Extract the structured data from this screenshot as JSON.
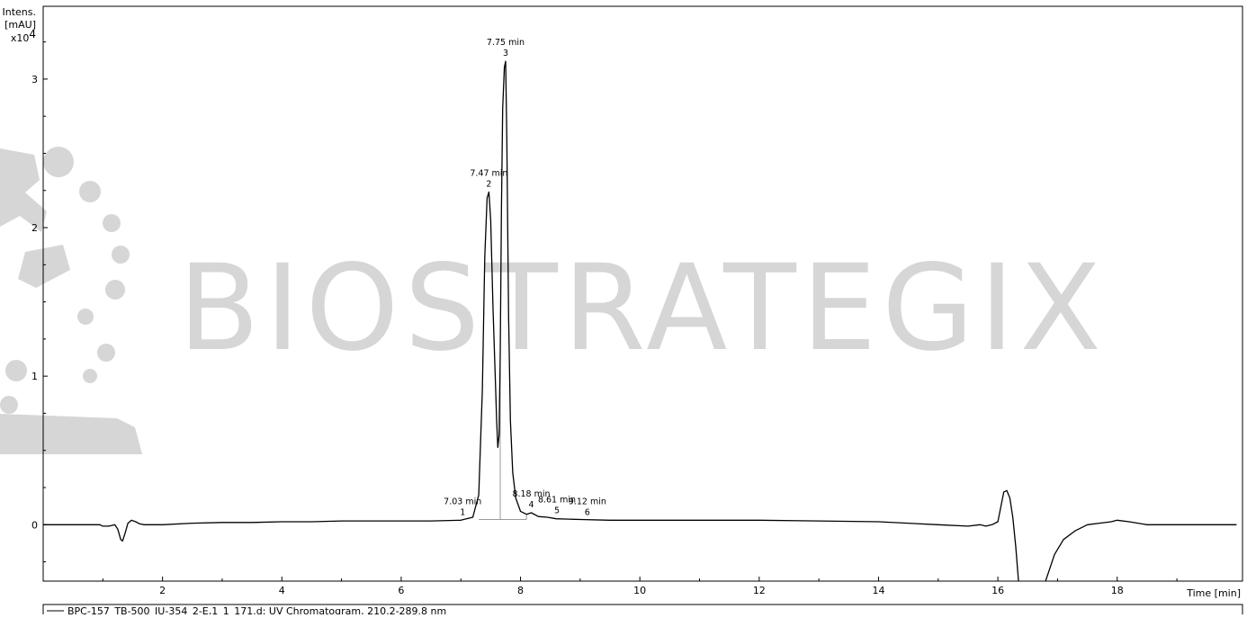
{
  "chart": {
    "y_title_line1": "Intens.",
    "y_title_line2": "[mAU]",
    "y_multiplier_base": "x10",
    "y_multiplier_exp": "4",
    "x_title": "Time [min]",
    "legend_label": "BPC-157_TB-500_JU-354_2-E,1_1_171.d: UV Chromatogram, 210.2-289.8 nm",
    "watermark": "BIOSTRATEGIX",
    "colors": {
      "trace": "#000000",
      "baseline": "#999999",
      "watermark": "#d6d6d6",
      "frame": "#000000"
    }
  },
  "chart_data": {
    "type": "line",
    "xlabel": "Time [min]",
    "ylabel": "Intens. [mAU] x10^4",
    "xlim": [
      0.0,
      20.1
    ],
    "ylim": [
      -0.38,
      3.49
    ],
    "x_ticks": [
      2,
      4,
      6,
      8,
      10,
      12,
      14,
      16,
      18
    ],
    "y_ticks": [
      0,
      1,
      2,
      3
    ],
    "grid": false,
    "legend_position": "bottom",
    "series": [
      {
        "name": "BPC-157_TB-500_JU-354_2-E,1_1_171.d: UV Chromatogram, 210.2-289.8 nm",
        "x": [
          0.0,
          0.5,
          0.8,
          0.9,
          0.95,
          1.0,
          1.1,
          1.15,
          1.2,
          1.25,
          1.3,
          1.33,
          1.37,
          1.42,
          1.48,
          1.55,
          1.62,
          1.7,
          2.0,
          2.5,
          3.0,
          3.5,
          4.0,
          4.5,
          5.0,
          5.5,
          6.0,
          6.5,
          7.0,
          7.2,
          7.3,
          7.36,
          7.4,
          7.44,
          7.47,
          7.5,
          7.54,
          7.58,
          7.6,
          7.62,
          7.64,
          7.66,
          7.68,
          7.7,
          7.73,
          7.75,
          7.77,
          7.8,
          7.83,
          7.87,
          7.92,
          8.0,
          8.1,
          8.18,
          8.3,
          8.45,
          8.6,
          8.75,
          9.0,
          9.5,
          10.0,
          11.0,
          12.0,
          13.0,
          14.0,
          15.0,
          15.5,
          15.7,
          15.8,
          15.9,
          16.0,
          16.1,
          16.15,
          16.2,
          16.25,
          16.3,
          16.35,
          16.4,
          16.45,
          16.6,
          16.8,
          16.95,
          17.1,
          17.3,
          17.5,
          17.7,
          17.9,
          18.0,
          18.2,
          18.5,
          19.0,
          19.5,
          20.0
        ],
        "y": [
          0.0,
          0.0,
          0.0,
          0.0,
          0.0,
          -0.01,
          -0.01,
          -0.005,
          0.0,
          -0.03,
          -0.1,
          -0.11,
          -0.06,
          0.01,
          0.03,
          0.02,
          0.005,
          0.0,
          0.0,
          0.01,
          0.015,
          0.015,
          0.02,
          0.02,
          0.025,
          0.025,
          0.025,
          0.025,
          0.03,
          0.05,
          0.2,
          0.9,
          1.8,
          2.2,
          2.24,
          2.05,
          1.45,
          0.95,
          0.7,
          0.52,
          0.6,
          1.15,
          2.1,
          2.8,
          3.08,
          3.12,
          2.6,
          1.4,
          0.7,
          0.35,
          0.18,
          0.09,
          0.07,
          0.08,
          0.055,
          0.05,
          0.04,
          0.038,
          0.035,
          0.03,
          0.03,
          0.03,
          0.03,
          0.025,
          0.02,
          0.0,
          -0.01,
          0.0,
          -0.01,
          0.0,
          0.02,
          0.22,
          0.23,
          0.18,
          0.05,
          -0.15,
          -0.4,
          -0.6,
          -0.8,
          -0.8,
          -0.38,
          -0.2,
          -0.1,
          -0.04,
          0.0,
          0.01,
          0.02,
          0.03,
          0.02,
          0.0,
          0.0,
          0.0,
          0.0
        ]
      }
    ],
    "peaks": [
      {
        "number": "1",
        "time_label": "7.03 min",
        "time": 7.03,
        "height": 0.03
      },
      {
        "number": "2",
        "time_label": "7.47 min",
        "time": 7.47,
        "height": 2.24
      },
      {
        "number": "3",
        "time_label": "7.75 min",
        "time": 7.75,
        "height": 3.12
      },
      {
        "number": "4",
        "time_label": "8.18 min",
        "time": 8.18,
        "height": 0.08
      },
      {
        "number": "5",
        "time_label": "8.61 min",
        "time": 8.61,
        "height": 0.04
      },
      {
        "number": "6",
        "time_label": "9.12 min",
        "time": 9.12,
        "height": 0.03
      }
    ],
    "integration_baselines": [
      {
        "x": [
          7.3,
          7.66
        ],
        "y": [
          0.035,
          0.035
        ]
      },
      {
        "x": [
          7.66,
          8.1
        ],
        "y": [
          0.035,
          0.035
        ]
      }
    ],
    "integration_splits": [
      7.66,
      8.1
    ]
  }
}
